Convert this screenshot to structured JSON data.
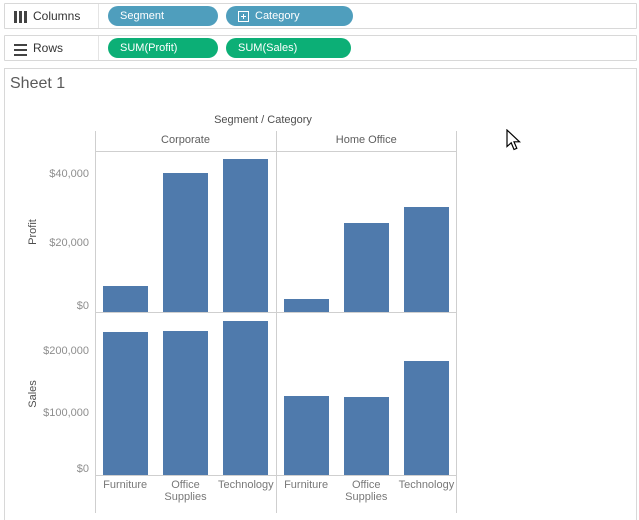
{
  "shelves": {
    "columns": {
      "label": "Columns",
      "icon": "columns-shelf-icon",
      "pills": [
        {
          "label": "Segment",
          "type": "dimension"
        },
        {
          "label": "Category",
          "type": "dimension",
          "expand_icon": "plus-box-icon"
        }
      ]
    },
    "rows": {
      "label": "Rows",
      "icon": "rows-shelf-icon",
      "pills": [
        {
          "label": "SUM(Profit)",
          "type": "measure"
        },
        {
          "label": "SUM(Sales)",
          "type": "measure"
        }
      ]
    }
  },
  "sheet": {
    "title": "Sheet 1"
  },
  "icons": {
    "columns_shelf": "columns-shelf-icon",
    "rows_shelf": "rows-shelf-icon",
    "category_expand": "plus-box-icon",
    "mouse_pointer": "arrow-cursor-icon"
  },
  "colors": {
    "dimension_pill": "#4f9ebd",
    "measure_pill": "#0caf76",
    "bar": "#4f7aac",
    "pill_text": "#ffffff"
  },
  "chart_data": {
    "type": "bar",
    "title": "Segment / Category",
    "grid": "faceted, light gray panel borders, no inner gridlines",
    "legend": "none",
    "column_facets": [
      "Corporate",
      "Home Office"
    ],
    "categories": [
      "Furniture",
      "Office Supplies",
      "Technology"
    ],
    "row_facets": [
      {
        "measure": "Profit",
        "ylabel": "Profit",
        "ylim": [
          0,
          46600
        ],
        "ticks": [
          {
            "label": "$40,000",
            "value": 40000
          },
          {
            "label": "$20,000",
            "value": 20000
          },
          {
            "label": "$0",
            "value": 0
          }
        ],
        "series": [
          {
            "facet": "Corporate",
            "values": [
              7585,
              40227,
              44167
            ]
          },
          {
            "facet": "Home Office",
            "values": [
              3918,
              25932,
              30461
            ]
          }
        ]
      },
      {
        "measure": "Sales",
        "ylabel": "Sales",
        "ylim": [
          0,
          260800
        ],
        "ticks": [
          {
            "label": "$200,000",
            "value": 200000
          },
          {
            "label": "$100,000",
            "value": 100000
          },
          {
            "label": "$0",
            "value": 0
          }
        ],
        "series": [
          {
            "facet": "Corporate",
            "values": [
              229020,
              230676,
              246450
            ]
          },
          {
            "facet": "Home Office",
            "values": [
              127181,
              126361,
              183940
            ]
          }
        ]
      }
    ]
  }
}
